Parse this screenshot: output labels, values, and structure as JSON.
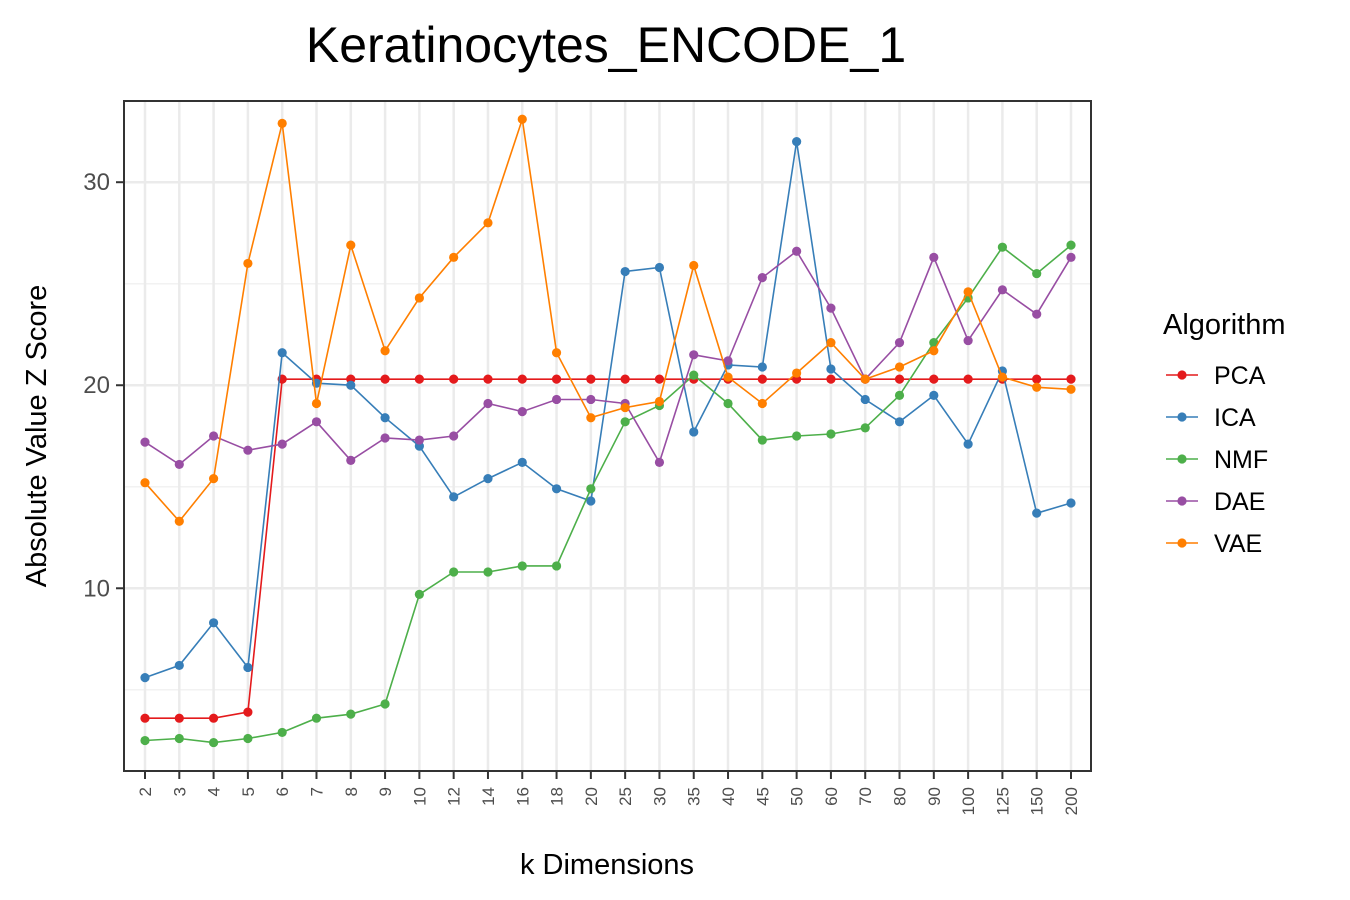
{
  "chart_data": {
    "type": "line",
    "title": "Keratinocytes_ENCODE_1",
    "xlabel": "k Dimensions",
    "ylabel": "Absolute Value Z Score",
    "categories": [
      "2",
      "3",
      "4",
      "5",
      "6",
      "7",
      "8",
      "9",
      "10",
      "12",
      "14",
      "16",
      "18",
      "20",
      "25",
      "30",
      "35",
      "40",
      "45",
      "50",
      "60",
      "70",
      "80",
      "90",
      "100",
      "125",
      "150",
      "200"
    ],
    "ylim": [
      1,
      34
    ],
    "yticks": [
      10,
      20,
      30
    ],
    "grid": true,
    "legend": {
      "title": "Algorithm",
      "position": "right"
    },
    "series": [
      {
        "name": "PCA",
        "color": "#e41a1c",
        "values": [
          3.6,
          3.6,
          3.6,
          3.9,
          20.3,
          20.3,
          20.3,
          20.3,
          20.3,
          20.3,
          20.3,
          20.3,
          20.3,
          20.3,
          20.3,
          20.3,
          20.3,
          20.3,
          20.3,
          20.3,
          20.3,
          20.3,
          20.3,
          20.3,
          20.3,
          20.3,
          20.3,
          20.3
        ]
      },
      {
        "name": "ICA",
        "color": "#377eb8",
        "values": [
          5.6,
          6.2,
          8.3,
          6.1,
          21.6,
          20.1,
          20.0,
          18.4,
          17.0,
          14.5,
          15.4,
          16.2,
          14.9,
          14.3,
          25.6,
          25.8,
          17.7,
          21.0,
          20.9,
          32.0,
          20.8,
          19.3,
          18.2,
          19.5,
          17.1,
          20.7,
          13.7,
          14.2
        ]
      },
      {
        "name": "NMF",
        "color": "#4daf4a",
        "values": [
          2.5,
          2.6,
          2.4,
          2.6,
          2.9,
          3.6,
          3.8,
          4.3,
          9.7,
          10.8,
          10.8,
          11.1,
          11.1,
          14.9,
          18.2,
          19.0,
          20.5,
          19.1,
          17.3,
          17.5,
          17.6,
          17.9,
          19.5,
          22.1,
          24.3,
          26.8,
          25.5,
          26.9
        ]
      },
      {
        "name": "DAE",
        "color": "#984ea3",
        "values": [
          17.2,
          16.1,
          17.5,
          16.8,
          17.1,
          18.2,
          16.3,
          17.4,
          17.3,
          17.5,
          19.1,
          18.7,
          19.3,
          19.3,
          19.1,
          16.2,
          21.5,
          21.2,
          25.3,
          26.6,
          23.8,
          20.3,
          22.1,
          26.3,
          22.2,
          24.7,
          23.5,
          26.3
        ]
      },
      {
        "name": "VAE",
        "color": "#ff7f00",
        "values": [
          15.2,
          13.3,
          15.4,
          26.0,
          32.9,
          19.1,
          26.9,
          21.7,
          24.3,
          26.3,
          28.0,
          33.1,
          21.6,
          18.4,
          18.9,
          19.2,
          25.9,
          20.4,
          19.1,
          20.6,
          22.1,
          20.3,
          20.9,
          21.7,
          24.6,
          20.4,
          19.9,
          19.8
        ]
      }
    ]
  }
}
